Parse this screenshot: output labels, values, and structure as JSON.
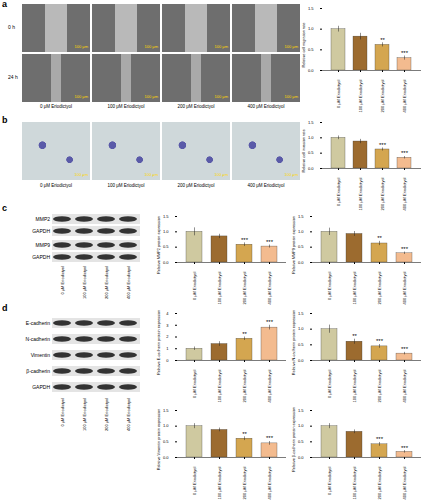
{
  "figure": {
    "panels": [
      "a",
      "b",
      "c",
      "d"
    ],
    "scale_bar": "100 μm",
    "migration_rows": [
      "0 h",
      "24 h"
    ],
    "conditions": [
      "0 μM Eriodictyol",
      "100 μM Eriodictyol",
      "200 μM Eriodictyol",
      "400 μM Eriodictyol"
    ],
    "blots": [
      {
        "rows": [
          "MMP2",
          "GAPDH",
          "MMP9",
          "GAPDH"
        ],
        "lanes": [
          "0 μM Eriodictyol",
          "100 μM Eriodictyol",
          "200 μM Eriodictyol",
          "400 μM Eriodictyol"
        ]
      },
      {
        "rows": [
          "E-cadherin",
          "N-cadherin",
          "Vimentin",
          "β-cadherin",
          "GAPDH"
        ],
        "lanes": [
          "0 μM Eriodictyol",
          "100 μM Eriodictyol",
          "200 μM Eriodictyol",
          "400 μM Eriodictyol"
        ]
      }
    ]
  },
  "chart_data": [
    {
      "type": "bar",
      "y_label": "Relative cell migration rate",
      "categories": [
        "0 μM Eriodictyol",
        "100 μM Eriodictyol",
        "200 μM Eriodictyol",
        "400 μM Eriodictyol"
      ],
      "values": [
        1.0,
        0.82,
        0.62,
        0.3
      ],
      "errors": [
        0.07,
        0.08,
        0.05,
        0.05
      ],
      "annotations": [
        null,
        null,
        "**",
        "***"
      ],
      "colors": [
        "#cfc9a0",
        "#9c6b2f",
        "#d4a650",
        "#f3bb8f"
      ],
      "ylim": [
        0,
        1.5
      ],
      "yticks": [
        {
          "value": 0,
          "label": "0.0"
        },
        {
          "value": 0.5,
          "label": "0.5"
        },
        {
          "value": 1,
          "label": "1.0"
        },
        {
          "value": 1.5,
          "label": "1.5"
        }
      ]
    },
    {
      "type": "bar",
      "y_label": "Relative cell invasion rate",
      "categories": [
        "0 μM Eriodictyol",
        "100 μM Eriodictyol",
        "200 μM Eriodictyol",
        "400 μM Eriodictyol"
      ],
      "values": [
        1.0,
        0.88,
        0.62,
        0.35
      ],
      "errors": [
        0.06,
        0.07,
        0.05,
        0.04
      ],
      "annotations": [
        null,
        null,
        "***",
        "***"
      ],
      "colors": [
        "#cfc9a0",
        "#9c6b2f",
        "#d4a650",
        "#f3bb8f"
      ],
      "ylim": [
        0,
        1.5
      ],
      "yticks": [
        {
          "value": 0,
          "label": "0.0"
        },
        {
          "value": 0.5,
          "label": "0.5"
        },
        {
          "value": 1,
          "label": "1.0"
        },
        {
          "value": 1.5,
          "label": "1.5"
        }
      ]
    },
    {
      "type": "bar",
      "y_label": "Relative MMP2 protein expression",
      "categories": [
        "0 μM Eriodictyol",
        "100 μM Eriodictyol",
        "200 μM Eriodictyol",
        "400 μM Eriodictyol"
      ],
      "values": [
        1.0,
        0.85,
        0.58,
        0.52
      ],
      "errors": [
        0.13,
        0.07,
        0.06,
        0.05
      ],
      "annotations": [
        null,
        null,
        "***",
        "***"
      ],
      "colors": [
        "#cfc9a0",
        "#9c6b2f",
        "#d4a650",
        "#f3bb8f"
      ],
      "ylim": [
        0,
        1.5
      ],
      "yticks": [
        {
          "value": 0,
          "label": "0.0"
        },
        {
          "value": 0.5,
          "label": "0.5"
        },
        {
          "value": 1,
          "label": "1.0"
        },
        {
          "value": 1.5,
          "label": "1.5"
        }
      ]
    },
    {
      "type": "bar",
      "y_label": "Relative MMP9 protein expression",
      "categories": [
        "0 μM Eriodictyol",
        "100 μM Eriodictyol",
        "200 μM Eriodictyol",
        "400 μM Eriodictyol"
      ],
      "values": [
        1.0,
        0.93,
        0.62,
        0.3
      ],
      "errors": [
        0.12,
        0.08,
        0.07,
        0.04
      ],
      "annotations": [
        null,
        null,
        "**",
        "***"
      ],
      "colors": [
        "#cfc9a0",
        "#9c6b2f",
        "#d4a650",
        "#f3bb8f"
      ],
      "ylim": [
        0,
        1.5
      ],
      "yticks": [
        {
          "value": 0,
          "label": "0.0"
        },
        {
          "value": 0.5,
          "label": "0.5"
        },
        {
          "value": 1,
          "label": "1.0"
        },
        {
          "value": 1.5,
          "label": "1.5"
        }
      ]
    },
    {
      "type": "bar",
      "y_label": "Relative E-cadherin protein expression",
      "categories": [
        "0 μM Eriodictyol",
        "100 μM Eriodictyol",
        "200 μM Eriodictyol",
        "400 μM Eriodictyol"
      ],
      "values": [
        1.0,
        1.4,
        1.85,
        2.8
      ],
      "errors": [
        0.15,
        0.2,
        0.15,
        0.2
      ],
      "annotations": [
        null,
        null,
        "**",
        "***"
      ],
      "colors": [
        "#cfc9a0",
        "#9c6b2f",
        "#d4a650",
        "#f3bb8f"
      ],
      "ylim": [
        0,
        4
      ],
      "yticks": [
        0,
        1,
        2,
        3,
        4
      ]
    },
    {
      "type": "bar",
      "y_label": "Relative N-cadherin protein expression",
      "categories": [
        "0 μM Eriodictyol",
        "100 μM Eriodictyol",
        "200 μM Eriodictyol",
        "400 μM Eriodictyol"
      ],
      "values": [
        1.0,
        0.6,
        0.45,
        0.22
      ],
      "errors": [
        0.13,
        0.08,
        0.06,
        0.04
      ],
      "annotations": [
        null,
        "**",
        "***",
        "***"
      ],
      "colors": [
        "#cfc9a0",
        "#9c6b2f",
        "#d4a650",
        "#f3bb8f"
      ],
      "ylim": [
        0,
        1.5
      ],
      "yticks": [
        {
          "value": 0,
          "label": "0.0"
        },
        {
          "value": 0.5,
          "label": "0.5"
        },
        {
          "value": 1,
          "label": "1.0"
        },
        {
          "value": 1.5,
          "label": "1.5"
        }
      ]
    },
    {
      "type": "bar",
      "y_label": "Relative Vimentin protein expression",
      "categories": [
        "0 μM Eriodictyol",
        "100 μM Eriodictyol",
        "200 μM Eriodictyol",
        "400 μM Eriodictyol"
      ],
      "values": [
        1.0,
        0.88,
        0.6,
        0.45
      ],
      "errors": [
        0.08,
        0.06,
        0.06,
        0.06
      ],
      "annotations": [
        null,
        null,
        "**",
        "***"
      ],
      "colors": [
        "#cfc9a0",
        "#9c6b2f",
        "#d4a650",
        "#f3bb8f"
      ],
      "ylim": [
        0,
        1.5
      ],
      "yticks": [
        {
          "value": 0,
          "label": "0.0"
        },
        {
          "value": 0.5,
          "label": "0.5"
        },
        {
          "value": 1,
          "label": "1.0"
        },
        {
          "value": 1.5,
          "label": "1.5"
        }
      ]
    },
    {
      "type": "bar",
      "y_label": "Relative β-cadherin protein expression",
      "categories": [
        "0 μM Eriodictyol",
        "100 μM Eriodictyol",
        "200 μM Eriodictyol",
        "400 μM Eriodictyol"
      ],
      "values": [
        1.0,
        0.82,
        0.42,
        0.18
      ],
      "errors": [
        0.08,
        0.06,
        0.06,
        0.04
      ],
      "annotations": [
        null,
        null,
        "***",
        "***"
      ],
      "colors": [
        "#cfc9a0",
        "#9c6b2f",
        "#d4a650",
        "#f3bb8f"
      ],
      "ylim": [
        0,
        1.5
      ],
      "yticks": [
        {
          "value": 0,
          "label": "0.0"
        },
        {
          "value": 0.5,
          "label": "0.5"
        },
        {
          "value": 1,
          "label": "1.0"
        },
        {
          "value": 1.5,
          "label": "1.5"
        }
      ]
    }
  ]
}
